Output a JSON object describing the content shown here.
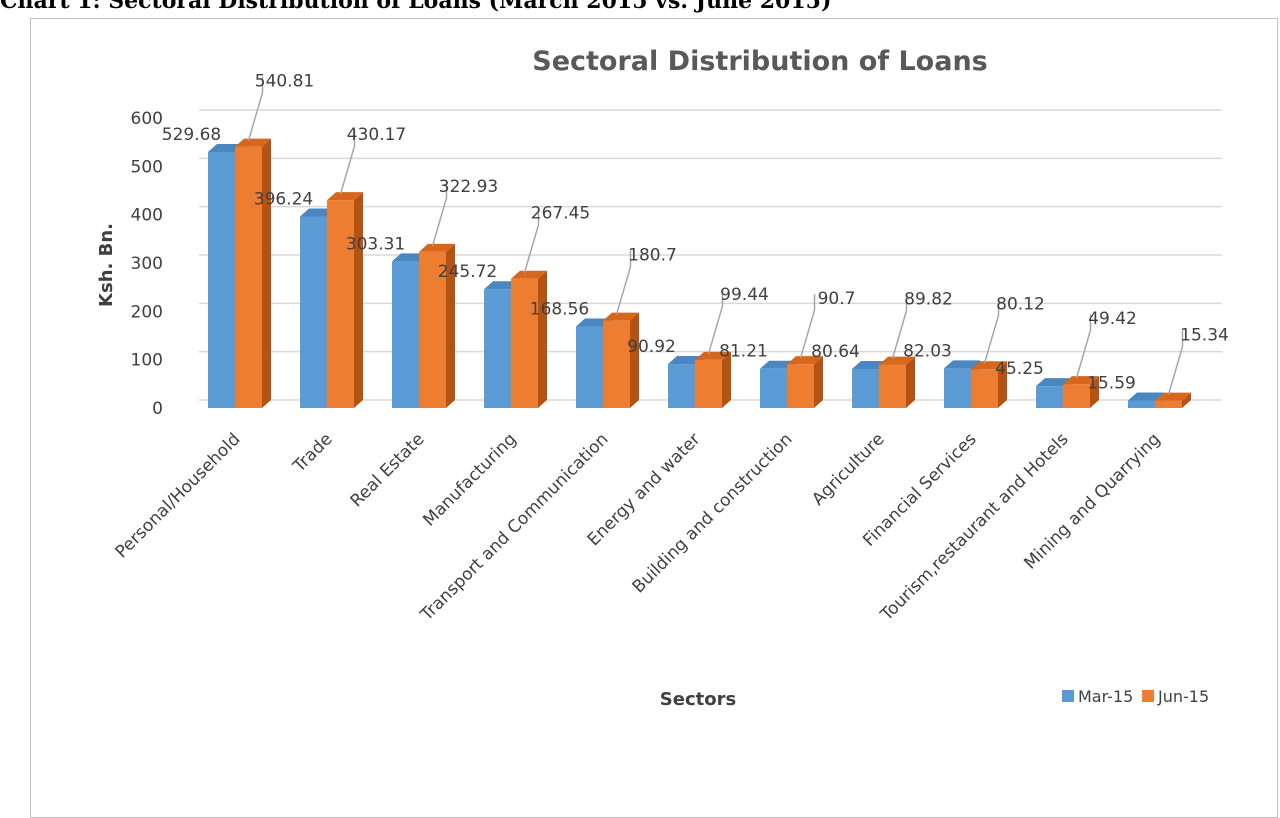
{
  "document": {
    "heading": "Chart 1: Sectoral Distribution of Loans (March 2015 vs. June 2015)"
  },
  "colors": {
    "mar_front": "#5b9bd5",
    "mar_top": "#4a86c0",
    "mar_side": "#3a6fa3",
    "jun_front": "#ed7d31",
    "jun_top": "#d6671c",
    "jun_side": "#b35415",
    "grid": "#d9d9d9",
    "leader": "#a6a6a6"
  },
  "chart_data": {
    "type": "bar",
    "title": "Sectoral Distribution of Loans",
    "xlabel": "Sectors",
    "ylabel": "Ksh. Bn.",
    "ylim": [
      0,
      600
    ],
    "yticks": [
      0,
      100,
      200,
      300,
      400,
      500,
      600
    ],
    "grid": true,
    "legend_position": "bottom-right",
    "categories": [
      "Personal/Household",
      "Trade",
      "Real Estate",
      "Manufacturing",
      "Transport and Communication",
      "Energy and water",
      "Building  and construction",
      "Agriculture",
      "Financial Services",
      "Tourism,restaurant and Hotels",
      "Mining and Quarrying"
    ],
    "series": [
      {
        "name": "Mar-15",
        "values": [
          529.68,
          396.24,
          303.31,
          245.72,
          168.56,
          90.92,
          81.21,
          80.64,
          82.03,
          45.25,
          15.59
        ],
        "labels": [
          "529.68",
          "396.24",
          "303.31",
          "245.72",
          "168.56",
          "90.92",
          "81.21",
          "80.64",
          "82.03",
          "45.25",
          "15.59"
        ]
      },
      {
        "name": "Jun-15",
        "values": [
          540.81,
          430.17,
          322.93,
          267.45,
          180.7,
          99.44,
          90.7,
          89.82,
          80.12,
          49.42,
          15.34
        ],
        "labels": [
          "540.81",
          "430.17",
          "322.93",
          "267.45",
          "180.7",
          "99.44",
          "90.7",
          "89.82",
          "80.12",
          "49.42",
          "15.34"
        ]
      }
    ]
  }
}
